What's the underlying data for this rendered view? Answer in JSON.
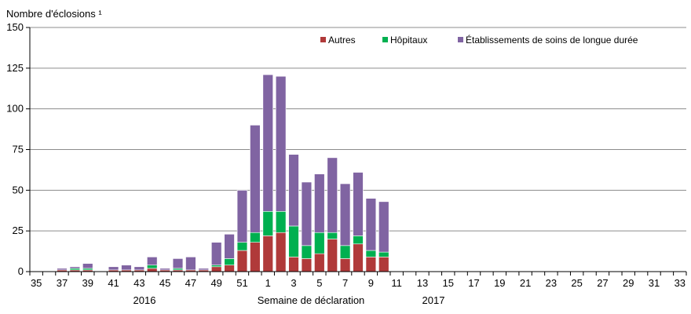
{
  "chart_data": {
    "type": "bar",
    "stacked": true,
    "ylabel": "Nombre d'éclosions ¹",
    "xlabel": "Semaine de déclaration",
    "year_labels": [
      "2016",
      "2017"
    ],
    "ylim": [
      0,
      150
    ],
    "yticks": [
      0,
      25,
      50,
      75,
      100,
      125,
      150
    ],
    "grid": true,
    "legend_position": "top-right",
    "categories": [
      "35",
      "36",
      "37",
      "38",
      "39",
      "40",
      "41",
      "42",
      "43",
      "44",
      "45",
      "46",
      "47",
      "48",
      "49",
      "50",
      "51",
      "52",
      "1",
      "2",
      "3",
      "4",
      "5",
      "6",
      "7",
      "8",
      "9",
      "10",
      "11",
      "12",
      "13",
      "14",
      "15",
      "16",
      "17",
      "18",
      "19",
      "20",
      "21",
      "22",
      "23",
      "24",
      "25",
      "26",
      "27",
      "28",
      "29",
      "30",
      "31",
      "32",
      "33"
    ],
    "x_tick_labels": [
      "35",
      "",
      "37",
      "",
      "39",
      "",
      "41",
      "",
      "43",
      "",
      "45",
      "",
      "47",
      "",
      "49",
      "",
      "51",
      "",
      "1",
      "",
      "3",
      "",
      "5",
      "",
      "7",
      "",
      "9",
      "",
      "11",
      "",
      "13",
      "",
      "15",
      "",
      "17",
      "",
      "19",
      "",
      "21",
      "",
      "23",
      "",
      "25",
      "",
      "27",
      "",
      "29",
      "",
      "31",
      "",
      "33"
    ],
    "series": [
      {
        "name": "Autres",
        "color": "#b03a3a",
        "values": [
          0,
          0,
          1,
          1,
          1,
          0,
          1,
          1,
          1,
          2,
          1,
          1,
          1,
          1,
          3,
          4,
          13,
          18,
          22,
          24,
          9,
          8,
          11,
          20,
          8,
          17,
          9,
          9,
          0,
          0,
          0,
          0,
          0,
          0,
          0,
          0,
          0,
          0,
          0,
          0,
          0,
          0,
          0,
          0,
          0,
          0,
          0,
          0,
          0,
          0,
          0
        ]
      },
      {
        "name": "Hôpitaux",
        "color": "#00b050",
        "values": [
          0,
          0,
          0,
          1,
          1,
          0,
          0,
          0,
          0,
          2,
          0,
          1,
          0,
          0,
          1,
          4,
          5,
          6,
          15,
          13,
          19,
          8,
          13,
          4,
          8,
          5,
          4,
          3,
          0,
          0,
          0,
          0,
          0,
          0,
          0,
          0,
          0,
          0,
          0,
          0,
          0,
          0,
          0,
          0,
          0,
          0,
          0,
          0,
          0,
          0,
          0
        ]
      },
      {
        "name": "Établissements de soins de longue durée",
        "color": "#8064a2",
        "values": [
          0,
          0,
          1,
          1,
          3,
          0,
          2,
          3,
          2,
          5,
          1,
          6,
          8,
          1,
          14,
          15,
          32,
          66,
          84,
          83,
          44,
          39,
          36,
          46,
          38,
          39,
          32,
          31,
          0,
          0,
          0,
          0,
          0,
          0,
          0,
          0,
          0,
          0,
          0,
          0,
          0,
          0,
          0,
          0,
          0,
          0,
          0,
          0,
          0,
          0,
          0
        ]
      }
    ]
  }
}
